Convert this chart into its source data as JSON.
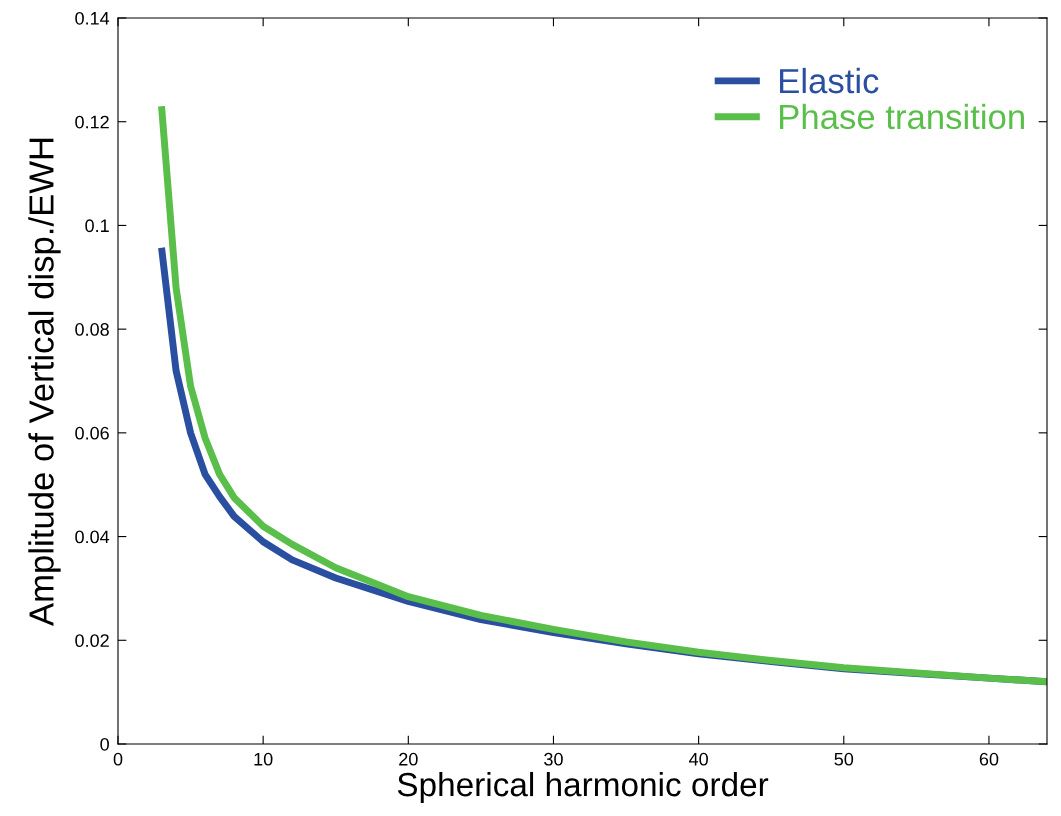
{
  "chart_data": {
    "type": "line",
    "xlabel": "Spherical harmonic order",
    "ylabel": "Amplitude of Vertical disp./EWH",
    "xlim": [
      0,
      64
    ],
    "xticks": [
      0,
      10,
      20,
      30,
      40,
      50,
      60
    ],
    "ylim": [
      0,
      0.14
    ],
    "yticks": [
      0,
      0.02,
      0.04,
      0.06,
      0.08,
      0.1,
      0.12,
      0.14
    ],
    "grid": false,
    "legend": "top right",
    "line_style": "solid",
    "marker": "none",
    "series": [
      {
        "name": "Elastic",
        "color": "#2a4fa0",
        "x": [
          3,
          4,
          5,
          6,
          7,
          8,
          10,
          12,
          15,
          20,
          25,
          30,
          35,
          40,
          45,
          50,
          55,
          60,
          64
        ],
        "values": [
          0.0957,
          0.072,
          0.06,
          0.052,
          0.0477,
          0.0439,
          0.039,
          0.0355,
          0.032,
          0.0275,
          0.024,
          0.0215,
          0.0193,
          0.0174,
          0.0159,
          0.0145,
          0.0136,
          0.0127,
          0.012
        ]
      },
      {
        "name": "Phase transition",
        "color": "#5abf4a",
        "x": [
          3,
          4,
          5,
          6,
          7,
          8,
          10,
          12,
          15,
          20,
          25,
          30,
          35,
          40,
          45,
          50,
          55,
          60,
          64
        ],
        "values": [
          0.123,
          0.088,
          0.069,
          0.059,
          0.052,
          0.0475,
          0.042,
          0.0385,
          0.034,
          0.0284,
          0.0248,
          0.0221,
          0.0197,
          0.0177,
          0.0161,
          0.0147,
          0.0137,
          0.0127,
          0.012
        ]
      }
    ]
  }
}
